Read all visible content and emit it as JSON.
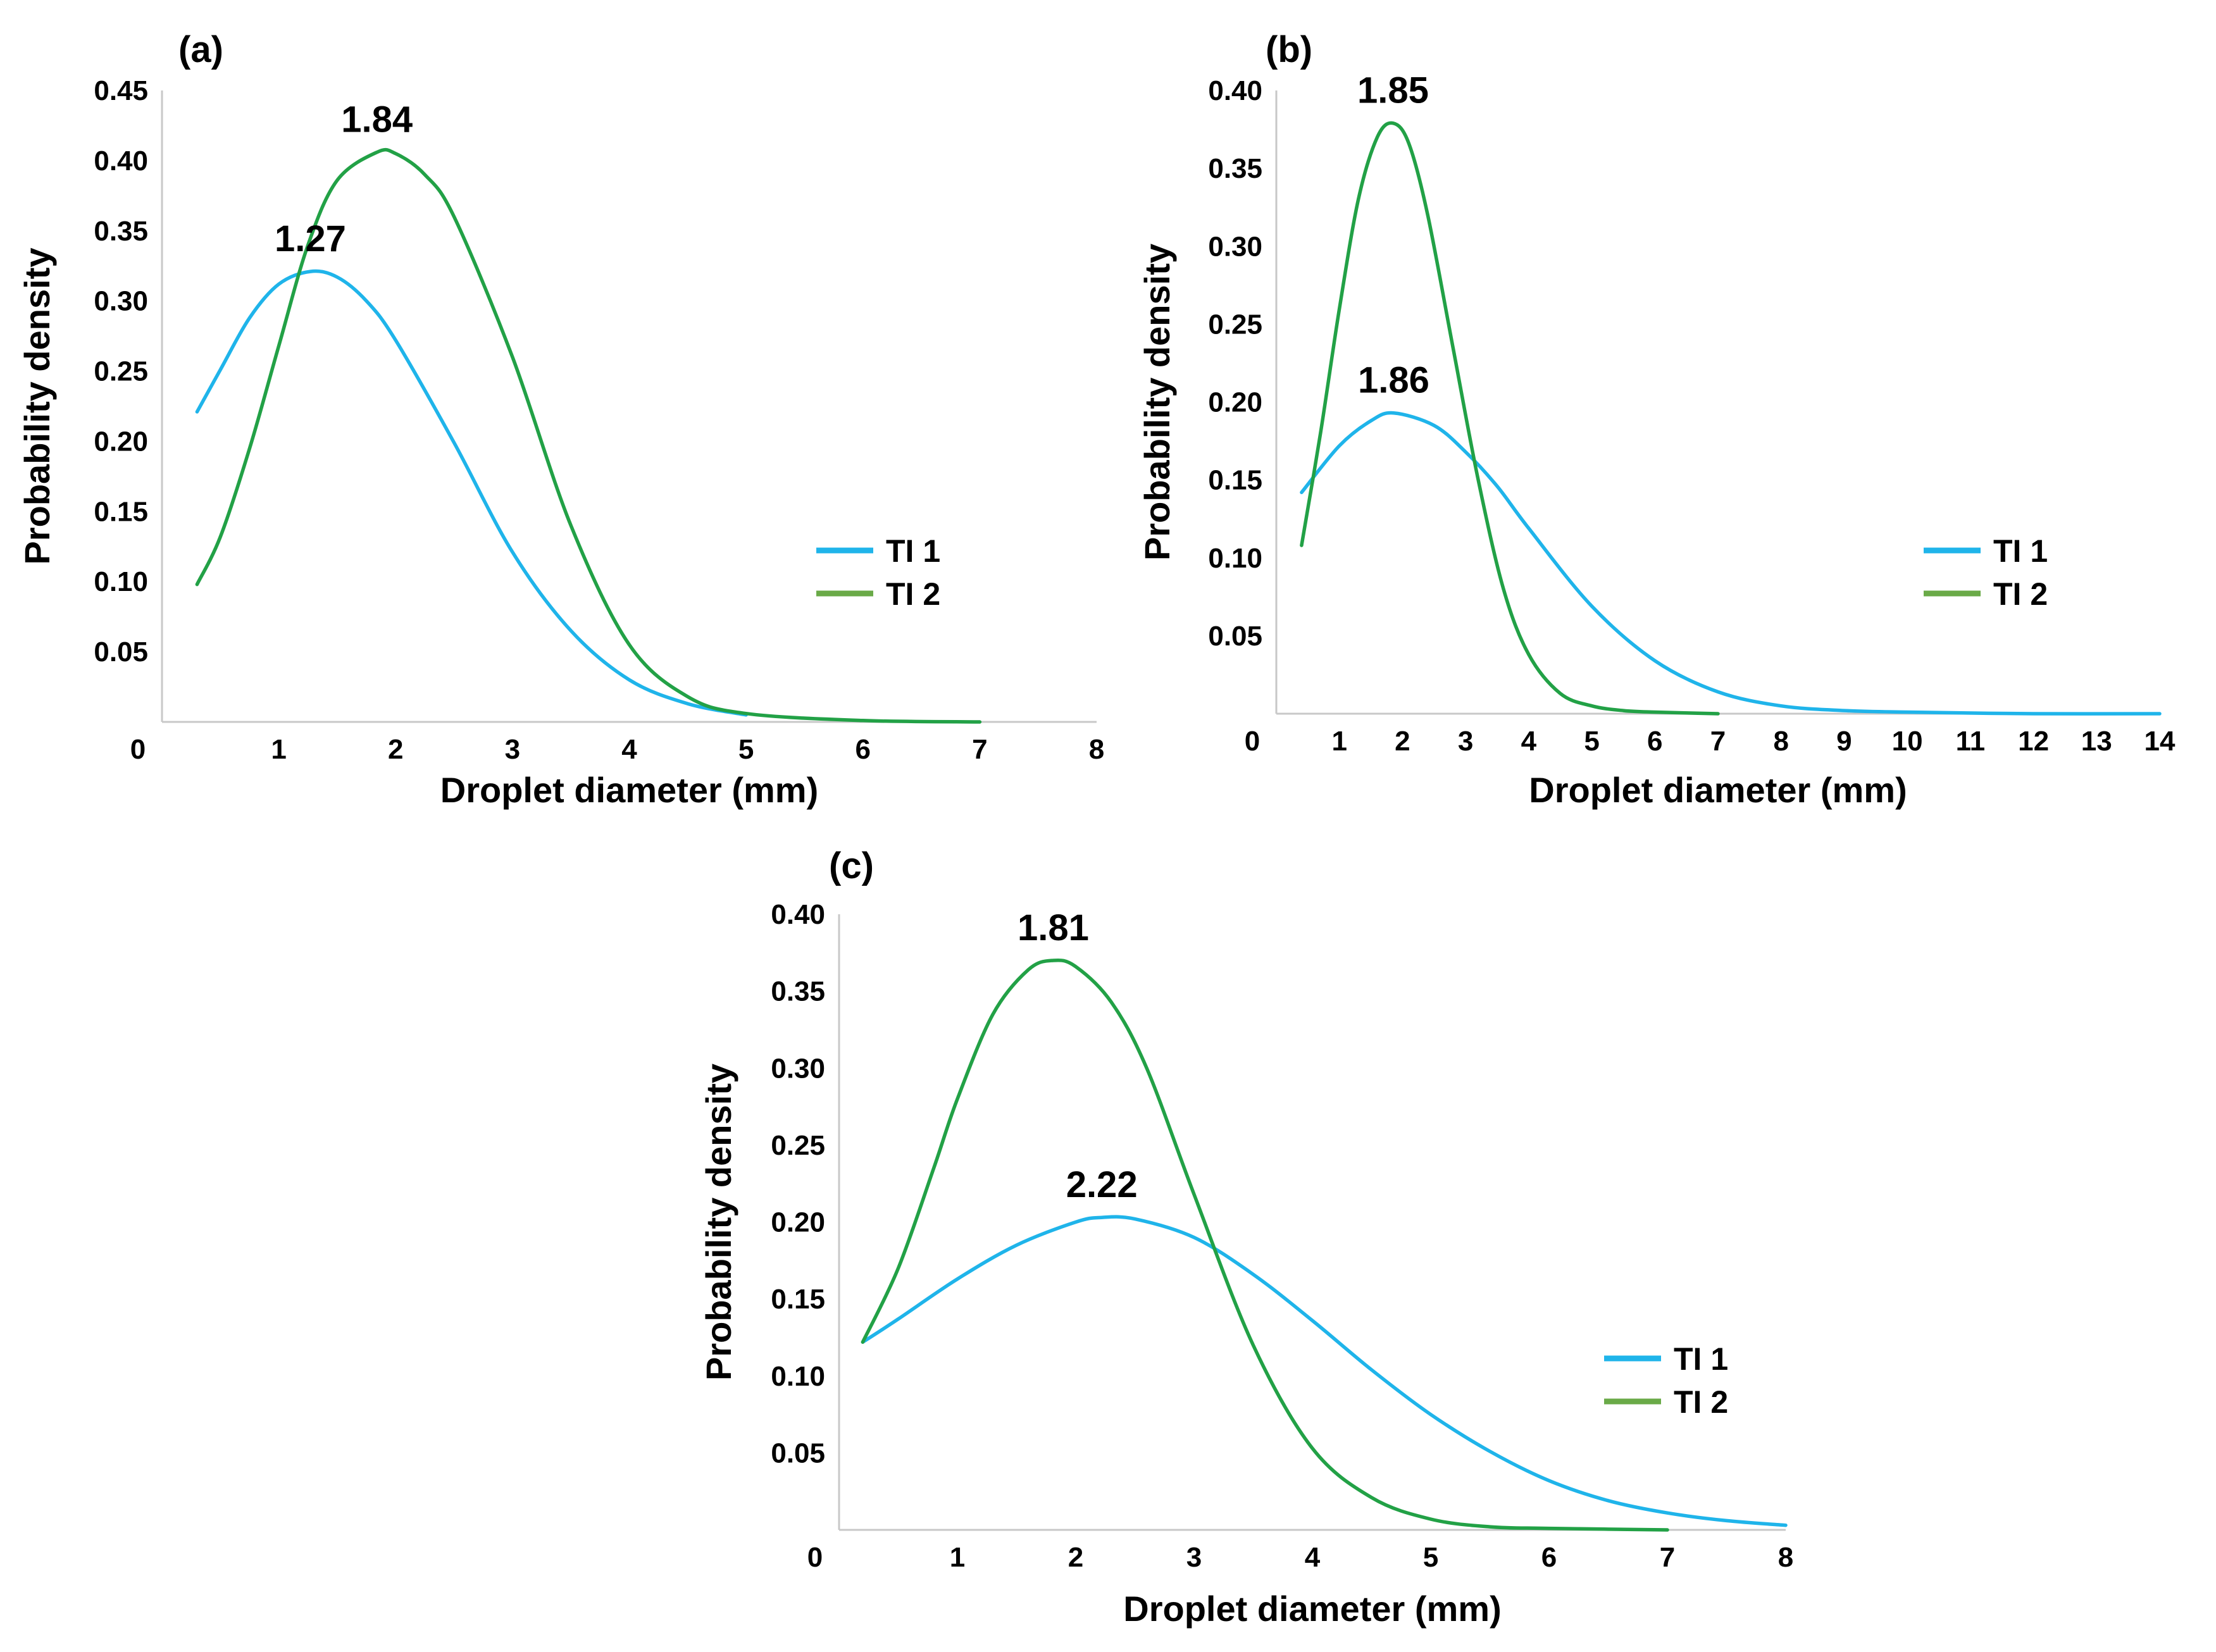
{
  "colors": {
    "ti1": "#1fb4ea",
    "ti2": "#22a146",
    "legend_ti2": "#6aaa48",
    "axis": "#c8c8c8"
  },
  "chart_data": [
    {
      "panel": "(a)",
      "type": "line",
      "xlabel": "Droplet diameter (mm)",
      "ylabel": "Probability density",
      "xlim": [
        0,
        8
      ],
      "ylim": [
        0,
        0.45
      ],
      "xticks": [
        "0",
        "1",
        "2",
        "3",
        "4",
        "5",
        "6",
        "7",
        "8"
      ],
      "yticks": [
        "0.05",
        "0.10",
        "0.15",
        "0.20",
        "0.25",
        "0.30",
        "0.35",
        "0.40",
        "0.45"
      ],
      "legend": [
        "TI 1",
        "TI 2"
      ],
      "series": [
        {
          "name": "TI 1",
          "color": "ti1",
          "x": [
            0.3,
            0.5,
            0.75,
            1.0,
            1.27,
            1.5,
            1.75,
            2.0,
            2.5,
            3.0,
            3.5,
            4.0,
            4.5,
            5.0
          ],
          "y": [
            0.221,
            0.251,
            0.288,
            0.312,
            0.321,
            0.317,
            0.3,
            0.272,
            0.199,
            0.121,
            0.065,
            0.03,
            0.013,
            0.005
          ]
        },
        {
          "name": "TI 2",
          "color": "ti2",
          "x": [
            0.3,
            0.5,
            0.75,
            1.0,
            1.25,
            1.5,
            1.84,
            2.0,
            2.25,
            2.5,
            3.0,
            3.5,
            4.0,
            4.5,
            5.0,
            6.0,
            7.0
          ],
          "y": [
            0.098,
            0.132,
            0.195,
            0.268,
            0.34,
            0.386,
            0.406,
            0.405,
            0.39,
            0.36,
            0.26,
            0.14,
            0.055,
            0.018,
            0.006,
            0.001,
            0.0
          ]
        }
      ],
      "annotations": [
        {
          "text": "1.27",
          "x": 1.27,
          "y": 0.321
        },
        {
          "text": "1.84",
          "x": 1.84,
          "y": 0.406
        }
      ]
    },
    {
      "panel": "(b)",
      "type": "line",
      "xlabel": "Droplet diameter (mm)",
      "ylabel": "Probability density",
      "xlim": [
        0,
        14
      ],
      "ylim": [
        0,
        0.4
      ],
      "xticks": [
        "0",
        "1",
        "2",
        "3",
        "4",
        "5",
        "6",
        "7",
        "8",
        "9",
        "10",
        "11",
        "12",
        "13",
        "14"
      ],
      "yticks": [
        "0.05",
        "0.10",
        "0.15",
        "0.20",
        "0.25",
        "0.30",
        "0.35",
        "0.40"
      ],
      "legend": [
        "TI 1",
        "TI 2"
      ],
      "series": [
        {
          "name": "TI 1",
          "color": "ti1",
          "x": [
            0.4,
            1.0,
            1.5,
            1.86,
            2.5,
            3.0,
            3.5,
            4.0,
            5.0,
            6.0,
            7.0,
            8.0,
            9.0,
            10.0,
            12.0,
            14.0
          ],
          "y": [
            0.142,
            0.172,
            0.188,
            0.193,
            0.185,
            0.168,
            0.146,
            0.119,
            0.069,
            0.034,
            0.014,
            0.005,
            0.002,
            0.001,
            0.0,
            0.0
          ]
        },
        {
          "name": "TI 2",
          "color": "ti2",
          "x": [
            0.4,
            0.7,
            1.0,
            1.3,
            1.6,
            1.85,
            2.1,
            2.4,
            2.8,
            3.2,
            3.6,
            4.0,
            4.5,
            5.0,
            5.5,
            6.0,
            7.0
          ],
          "y": [
            0.108,
            0.18,
            0.26,
            0.33,
            0.37,
            0.379,
            0.366,
            0.32,
            0.235,
            0.15,
            0.08,
            0.038,
            0.013,
            0.005,
            0.002,
            0.001,
            0.0
          ]
        }
      ],
      "annotations": [
        {
          "text": "1.85",
          "x": 1.85,
          "y": 0.379
        },
        {
          "text": "1.86",
          "x": 1.86,
          "y": 0.193
        }
      ]
    },
    {
      "panel": "(c)",
      "type": "line",
      "xlabel": "Droplet diameter (mm)",
      "ylabel": "Probability density",
      "xlim": [
        0,
        8
      ],
      "ylim": [
        0,
        0.4
      ],
      "xticks": [
        "0",
        "1",
        "2",
        "3",
        "4",
        "5",
        "6",
        "7",
        "8"
      ],
      "yticks": [
        "0.05",
        "0.10",
        "0.15",
        "0.20",
        "0.25",
        "0.30",
        "0.35",
        "0.40"
      ],
      "legend": [
        "TI 1",
        "TI 2"
      ],
      "series": [
        {
          "name": "TI 1",
          "color": "ti1",
          "x": [
            0.2,
            0.5,
            1.0,
            1.5,
            2.0,
            2.22,
            2.5,
            3.0,
            3.5,
            4.0,
            4.5,
            5.0,
            5.5,
            6.0,
            6.5,
            7.0,
            7.5,
            8.0
          ],
          "y": [
            0.122,
            0.137,
            0.163,
            0.185,
            0.2,
            0.203,
            0.202,
            0.19,
            0.166,
            0.136,
            0.104,
            0.075,
            0.051,
            0.032,
            0.019,
            0.011,
            0.006,
            0.003
          ]
        },
        {
          "name": "TI 2",
          "color": "ti2",
          "x": [
            0.2,
            0.5,
            0.8,
            1.0,
            1.3,
            1.6,
            1.81,
            2.0,
            2.3,
            2.6,
            3.0,
            3.5,
            4.0,
            4.5,
            5.0,
            5.5,
            6.0,
            7.0
          ],
          "y": [
            0.122,
            0.17,
            0.235,
            0.28,
            0.335,
            0.364,
            0.37,
            0.366,
            0.343,
            0.3,
            0.218,
            0.12,
            0.053,
            0.021,
            0.007,
            0.002,
            0.001,
            0.0
          ]
        }
      ],
      "annotations": [
        {
          "text": "1.81",
          "x": 1.81,
          "y": 0.37
        },
        {
          "text": "2.22",
          "x": 2.22,
          "y": 0.203
        }
      ]
    }
  ]
}
